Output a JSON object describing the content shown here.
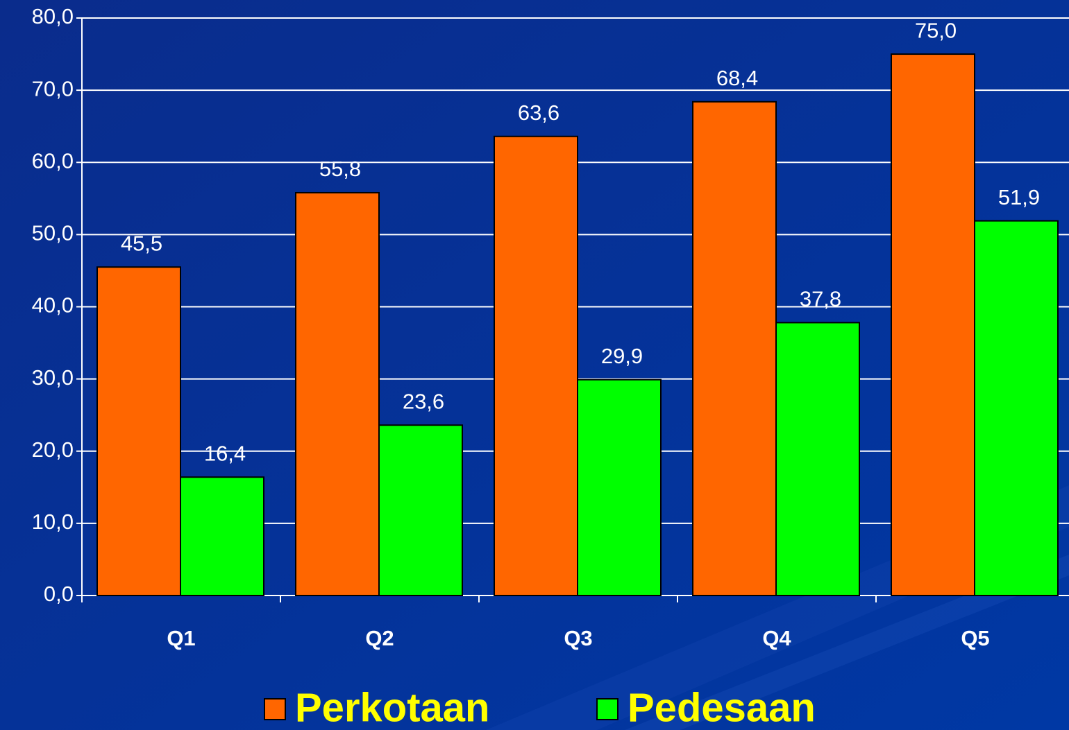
{
  "chart_data": {
    "type": "bar",
    "categories": [
      "Q1",
      "Q2",
      "Q3",
      "Q4",
      "Q5"
    ],
    "series": [
      {
        "name": "Perkotaan",
        "color": "#ff6600",
        "values": [
          45.5,
          55.8,
          63.6,
          68.4,
          75.0
        ],
        "value_labels": [
          "45,5",
          "55,8",
          "63,6",
          "68,4",
          "75,0"
        ]
      },
      {
        "name": "Pedesaan",
        "color": "#00ff00",
        "values": [
          16.4,
          23.6,
          29.9,
          37.8,
          51.9
        ],
        "value_labels": [
          "16,4",
          "23,6",
          "29,9",
          "37,8",
          "51,9"
        ]
      }
    ],
    "ylim": [
      0,
      80
    ],
    "yticks": [
      {
        "value": 0,
        "label": "0,0"
      },
      {
        "value": 10,
        "label": "10,0"
      },
      {
        "value": 20,
        "label": "20,0"
      },
      {
        "value": 30,
        "label": "30,0"
      },
      {
        "value": 40,
        "label": "40,0"
      },
      {
        "value": 50,
        "label": "50,0"
      },
      {
        "value": 60,
        "label": "60,0"
      },
      {
        "value": 70,
        "label": "70,0"
      },
      {
        "value": 80,
        "label": "80,0"
      }
    ],
    "grid": true,
    "legend": "bottom"
  }
}
